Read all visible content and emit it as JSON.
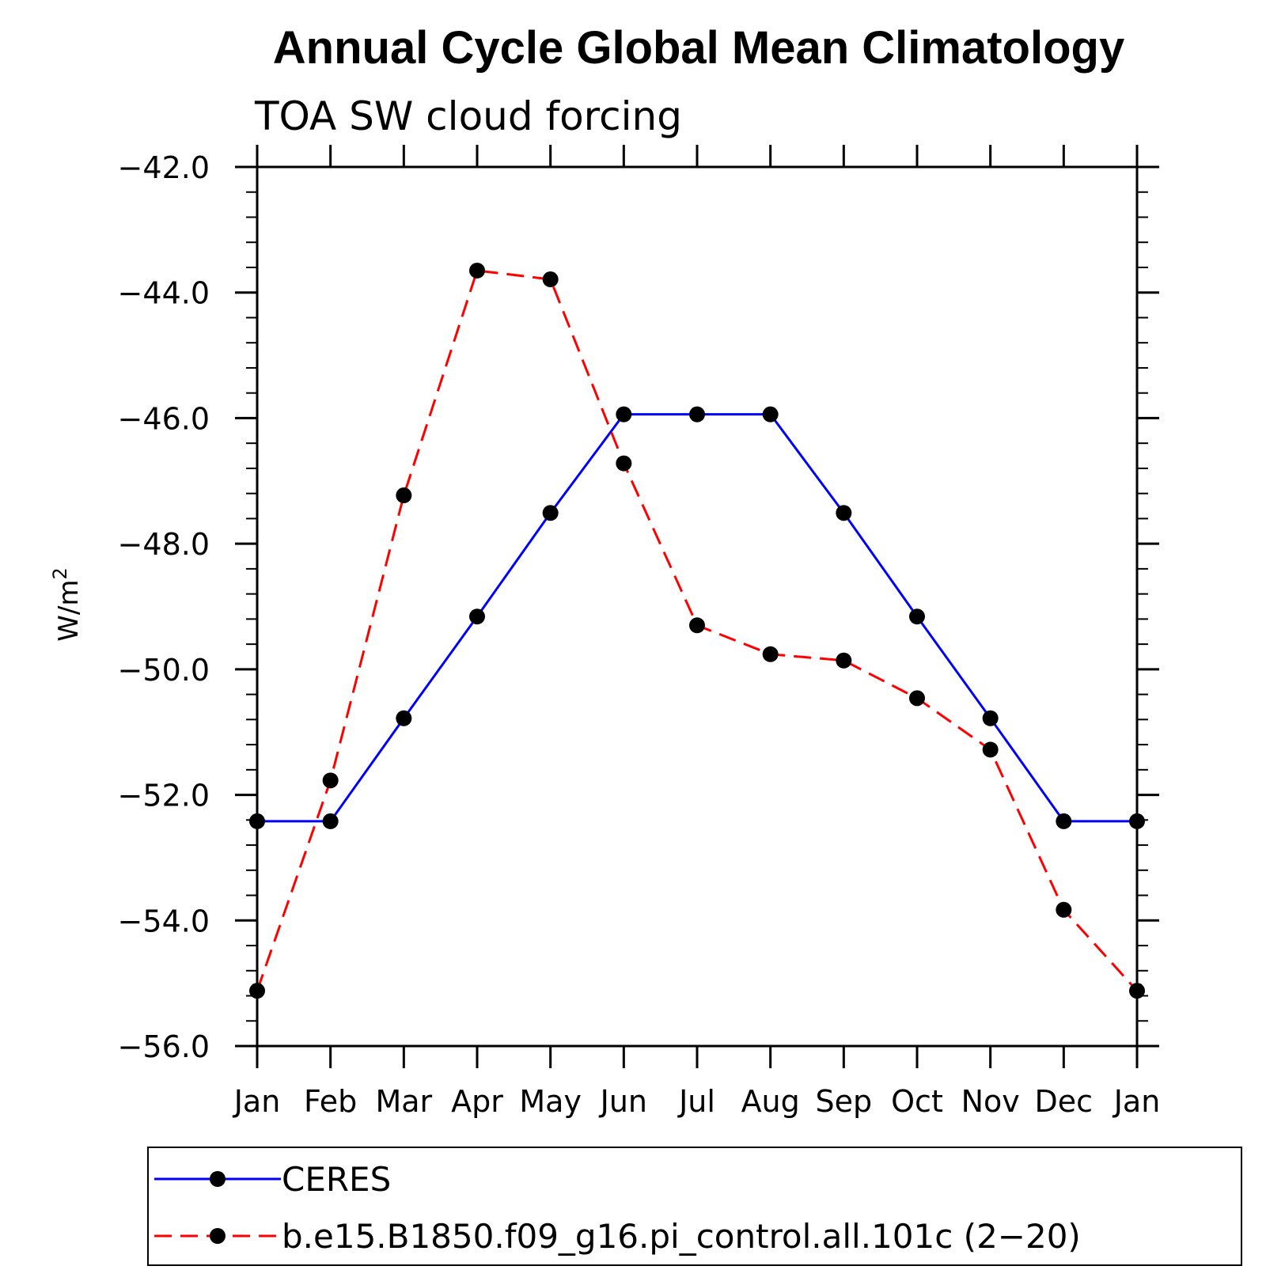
{
  "chart_data": {
    "type": "line",
    "title": "Annual Cycle Global Mean Climatology",
    "subtitle": "TOA SW cloud forcing",
    "ylabel": "W/m",
    "ylabel_superscript": "2",
    "xlabel": "",
    "categories": [
      "Jan",
      "Feb",
      "Mar",
      "Apr",
      "May",
      "Jun",
      "Jul",
      "Aug",
      "Sep",
      "Oct",
      "Nov",
      "Dec",
      "Jan"
    ],
    "ylim": [
      -56.0,
      -42.0
    ],
    "yticks": [
      "-42.0",
      "-44.0",
      "-46.0",
      "-48.0",
      "-50.0",
      "-52.0",
      "-54.0",
      "-56.0"
    ],
    "grid": false,
    "legend_position": "bottom",
    "series": [
      {
        "name": "CERES",
        "color": "#0000ff",
        "dash": "solid",
        "marker": "filled-circle",
        "values": [
          -52.42,
          -52.42,
          -50.78,
          -49.16,
          -47.51,
          -45.94,
          -45.94,
          -45.94,
          -47.51,
          -49.16,
          -50.78,
          -52.42,
          -52.42
        ]
      },
      {
        "name": "b.e15.B1850.f09_g16.pi_control.all.101c (2−20)",
        "color": "#ff0000",
        "dash": "dashed",
        "marker": "filled-circle",
        "values": [
          -55.12,
          -51.77,
          -47.23,
          -43.65,
          -43.79,
          -46.72,
          -49.3,
          -49.76,
          -49.86,
          -50.46,
          -51.28,
          -53.83,
          -55.12
        ]
      }
    ]
  }
}
